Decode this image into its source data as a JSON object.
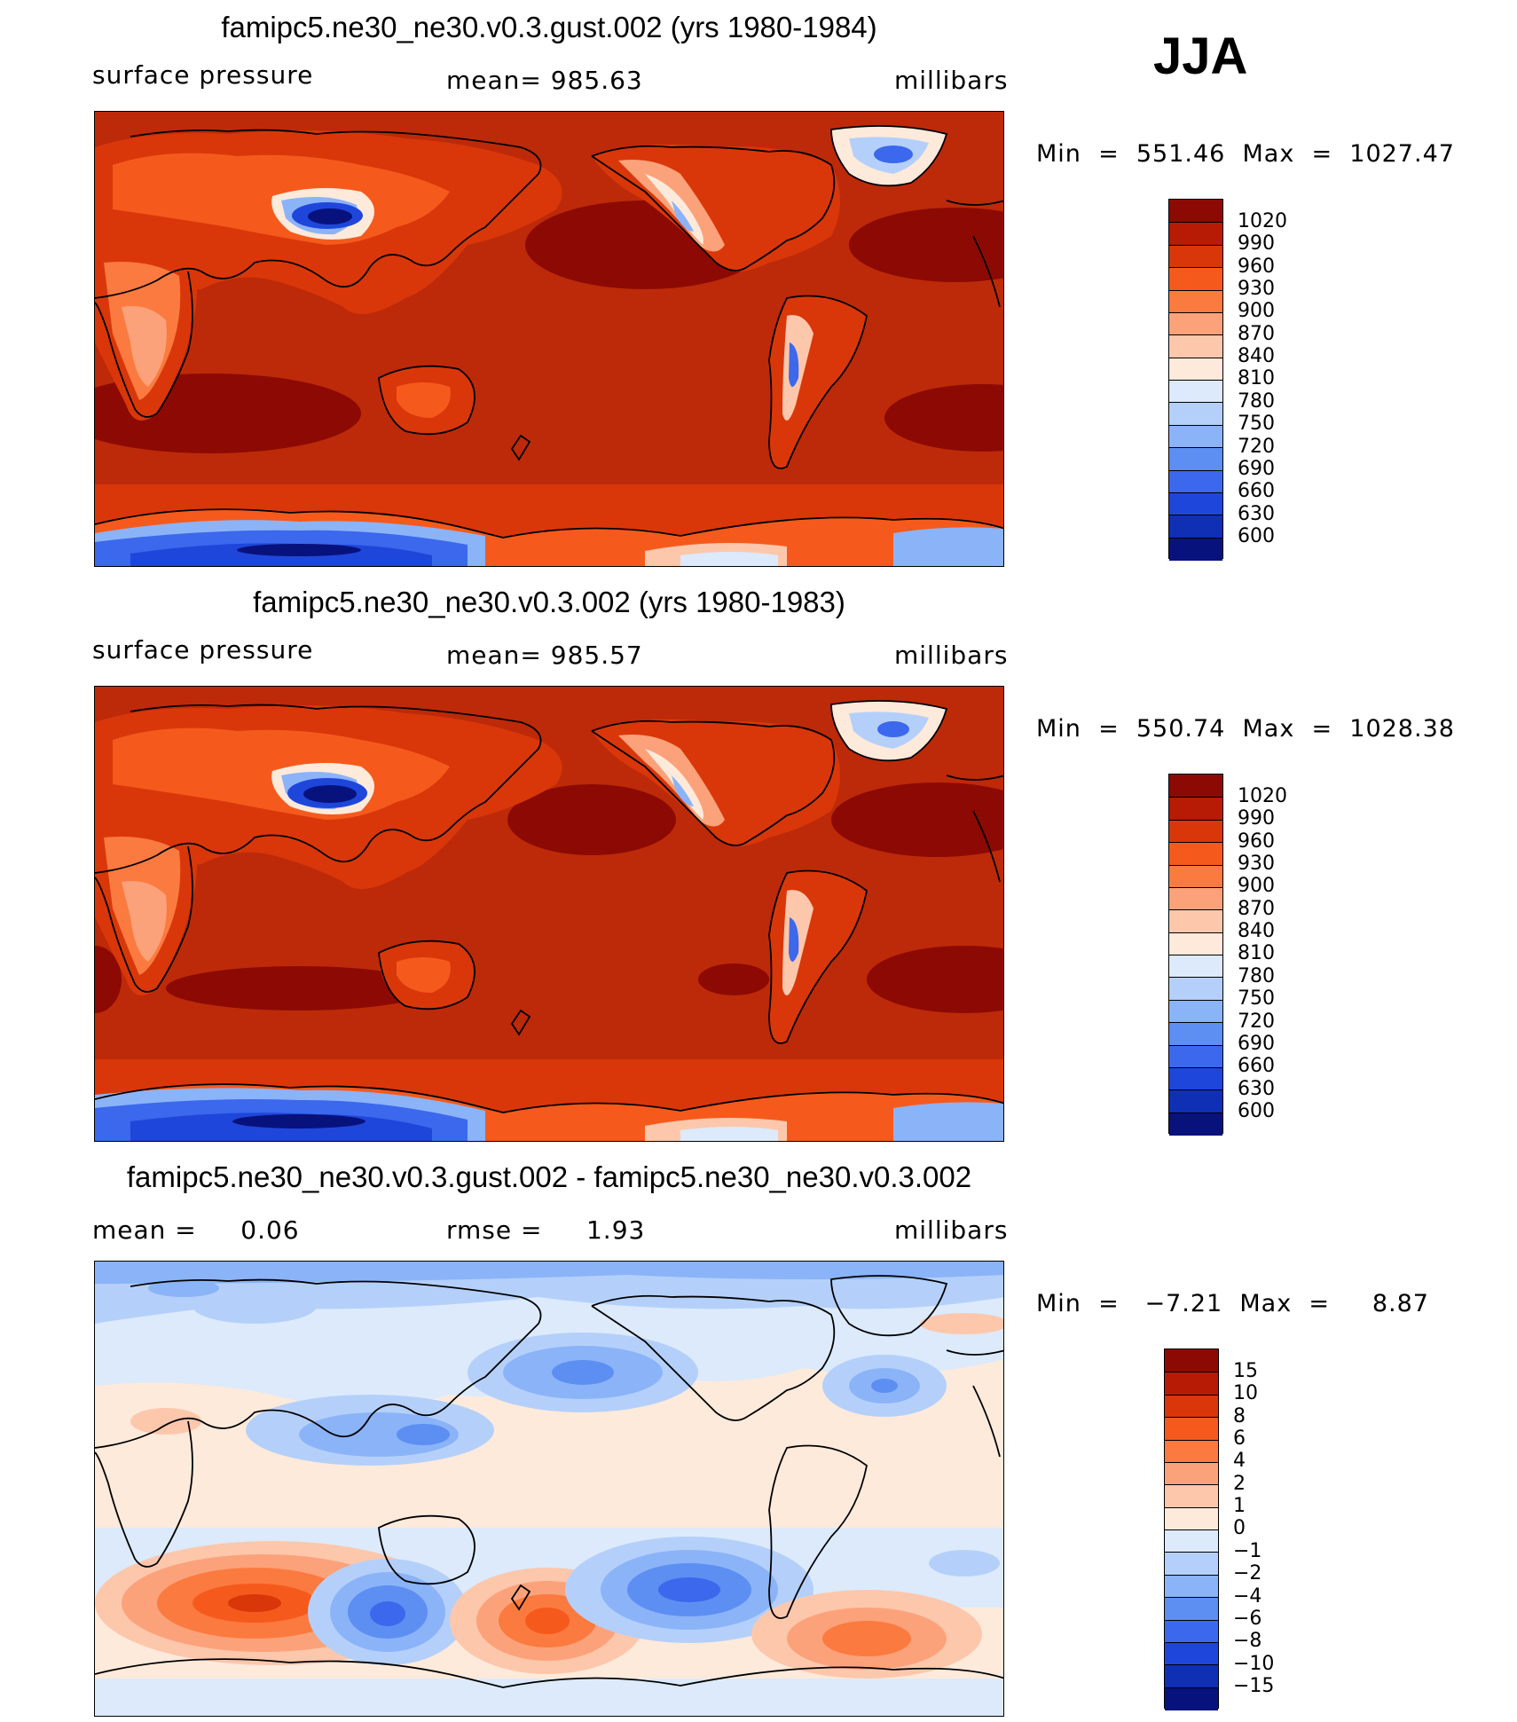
{
  "season": "JJA",
  "panels": [
    {
      "title": "famipc5.ne30_ne30.v0.3.gust.002 (yrs 1980-1984)",
      "left_label": "surface pressure",
      "center_label": "mean= 985.63",
      "right_label": "millibars",
      "minmax": "Min  =  551.46  Max  =  1027.47",
      "ocean_color": "#bd2a09",
      "colorbar": {
        "labels": [
          "1020",
          "990",
          "960",
          "930",
          "900",
          "870",
          "840",
          "810",
          "780",
          "750",
          "720",
          "690",
          "660",
          "630",
          "600"
        ],
        "colors": [
          "#8c0a03",
          "#b71b06",
          "#d9370a",
          "#f55a1c",
          "#fb7a3f",
          "#fca27a",
          "#fdc7ac",
          "#feeadb",
          "#dceafb",
          "#b4d0fa",
          "#8bb3f8",
          "#5d8ef2",
          "#3b68ec",
          "#1f46db",
          "#0f2fb5",
          "#08127c"
        ]
      }
    },
    {
      "title": "famipc5.ne30_ne30.v0.3.002 (yrs 1980-1983)",
      "left_label": "surface pressure",
      "center_label": "mean= 985.57",
      "right_label": "millibars",
      "minmax": "Min  =  550.74  Max  =  1028.38",
      "ocean_color": "#bd2a09",
      "colorbar": {
        "labels": [
          "1020",
          "990",
          "960",
          "930",
          "900",
          "870",
          "840",
          "810",
          "780",
          "750",
          "720",
          "690",
          "660",
          "630",
          "600"
        ],
        "colors": [
          "#8c0a03",
          "#b71b06",
          "#d9370a",
          "#f55a1c",
          "#fb7a3f",
          "#fca27a",
          "#fdc7ac",
          "#feeadb",
          "#dceafb",
          "#b4d0fa",
          "#8bb3f8",
          "#5d8ef2",
          "#3b68ec",
          "#1f46db",
          "#0f2fb5",
          "#08127c"
        ]
      }
    },
    {
      "title": "famipc5.ne30_ne30.v0.3.gust.002 - famipc5.ne30_ne30.v0.3.002",
      "left_label": "mean =     0.06",
      "center_label": "rmse =     1.93",
      "right_label": "millibars",
      "minmax": "Min  =   −7.21  Max  =     8.87",
      "ocean_color": "#feeadb",
      "colorbar": {
        "labels": [
          "15",
          "10",
          "8",
          "6",
          "4",
          "2",
          "1",
          "0",
          "−1",
          "−2",
          "−4",
          "−6",
          "−8",
          "−10",
          "−15"
        ],
        "colors": [
          "#8c0a03",
          "#b71b06",
          "#d9370a",
          "#f55a1c",
          "#fb7a3f",
          "#fca27a",
          "#fdc7ac",
          "#feeadb",
          "#dceafb",
          "#b4d0fa",
          "#8bb3f8",
          "#5d8ef2",
          "#3b68ec",
          "#1f46db",
          "#0f2fb5",
          "#08127c"
        ]
      }
    }
  ]
}
